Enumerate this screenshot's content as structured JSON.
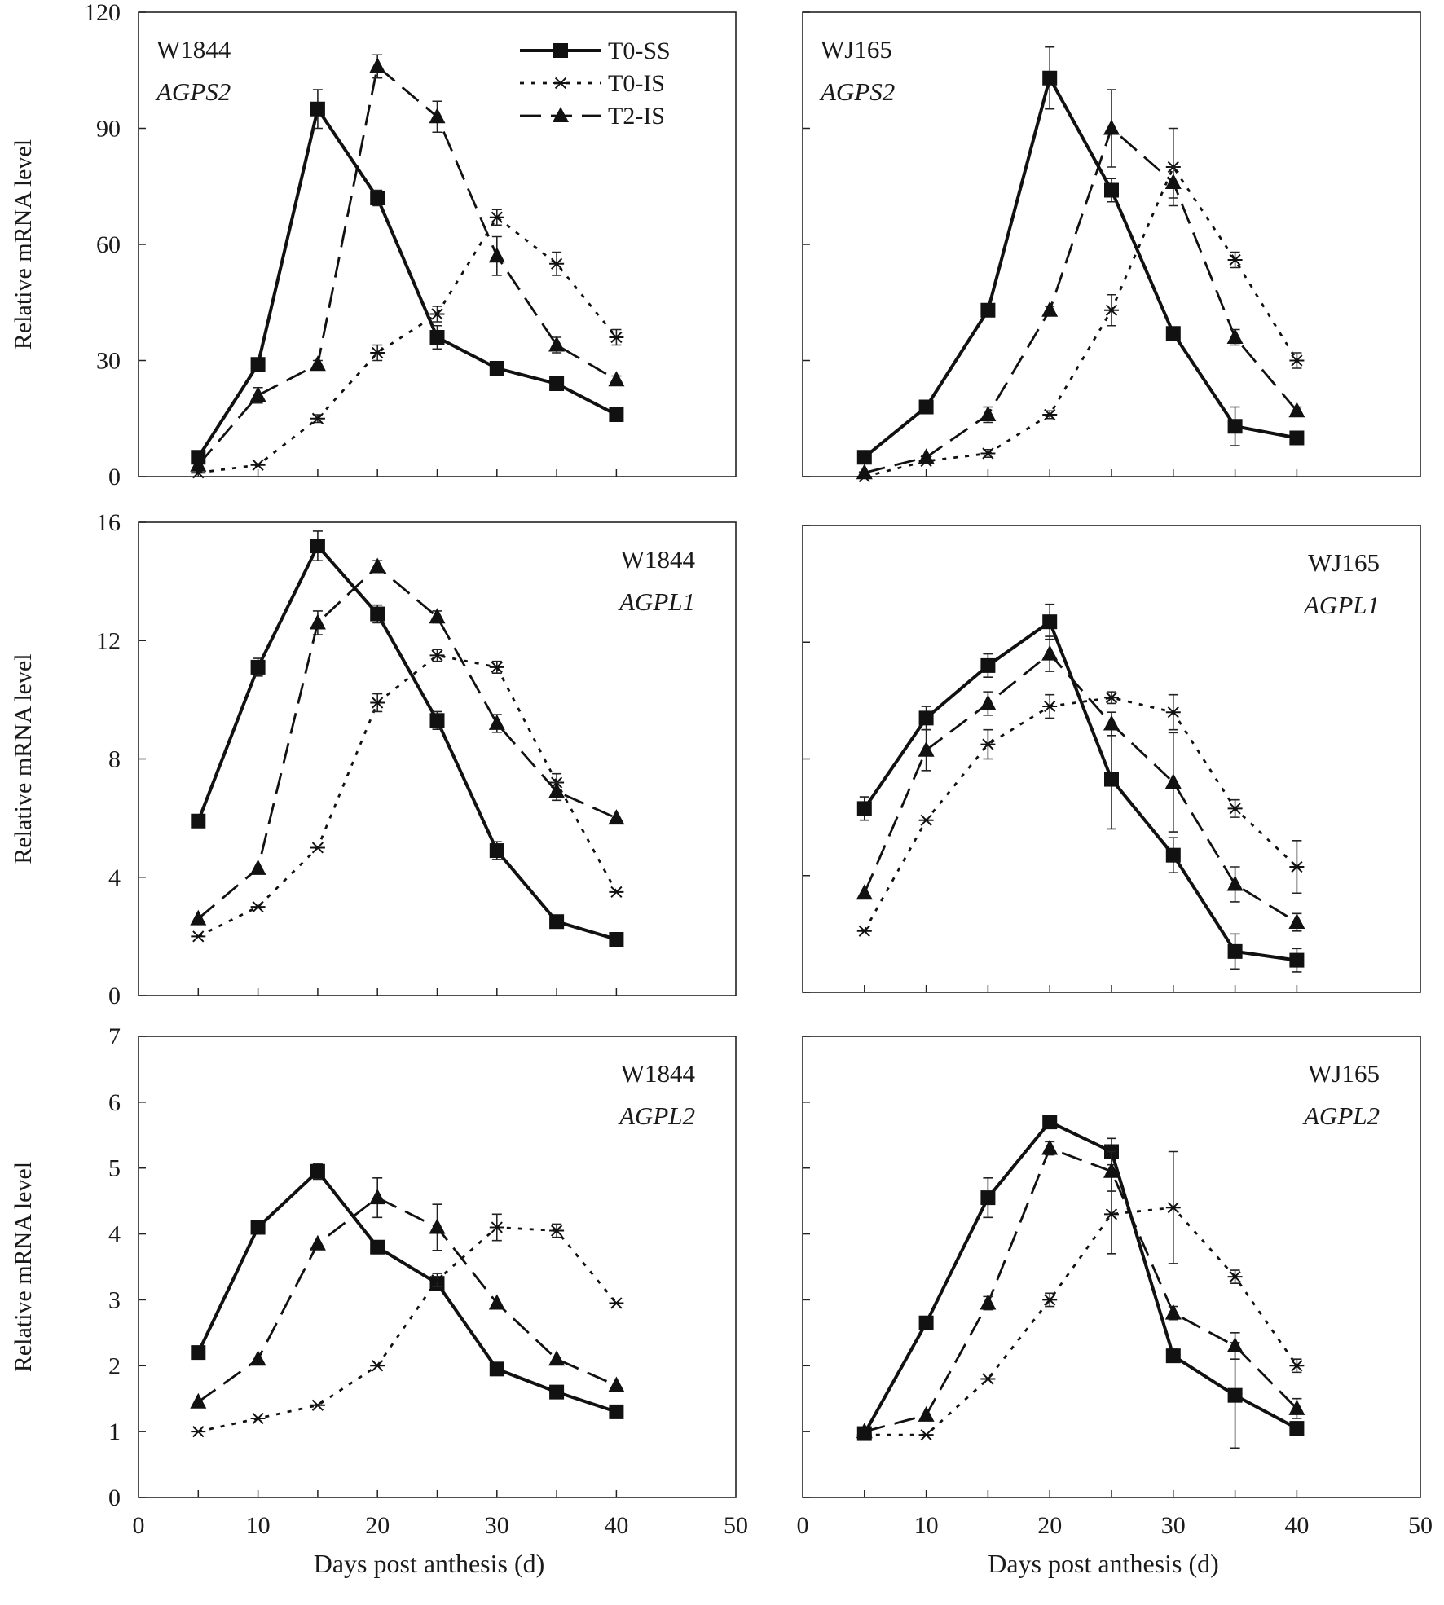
{
  "figure": {
    "series_styles": [
      {
        "name": "T0-SS",
        "marker": "square",
        "dash": "solid",
        "color": "#111111"
      },
      {
        "name": "T0-IS",
        "marker": "asterisk",
        "dash": "dotted",
        "color": "#111111"
      },
      {
        "name": "T2-IS",
        "marker": "triangle",
        "dash": "dashed",
        "color": "#111111"
      }
    ]
  },
  "chart_data": [
    {
      "id": "w1844-agps2",
      "type": "line",
      "cultivar": "W1844",
      "gene": "AGPS2",
      "ylabel": "Relative mRNA level",
      "xlabel": "",
      "ylim": [
        0,
        120
      ],
      "yticks": [
        0,
        30,
        60,
        90,
        120
      ],
      "xlim": [
        0,
        50
      ],
      "xticks": [],
      "legend": {
        "placement": "top-center",
        "entries": [
          "T0-SS",
          "T0-IS",
          "T2-IS"
        ]
      },
      "x": [
        5,
        10,
        15,
        20,
        25,
        30,
        35,
        40
      ],
      "series": [
        {
          "name": "T0-SS",
          "values": [
            5,
            29,
            95,
            72,
            36,
            28,
            24,
            16
          ],
          "errors": [
            0,
            0,
            5,
            2,
            3,
            1,
            1,
            1
          ]
        },
        {
          "name": "T0-IS",
          "values": [
            1,
            3,
            15,
            32,
            42,
            67,
            55,
            36
          ],
          "errors": [
            0,
            0,
            1,
            2,
            2,
            2,
            3,
            2
          ]
        },
        {
          "name": "T2-IS",
          "values": [
            3,
            21,
            29,
            106,
            93,
            57,
            34,
            25
          ],
          "errors": [
            0,
            2,
            1,
            3,
            4,
            5,
            2,
            1
          ]
        }
      ]
    },
    {
      "id": "wj165-agps2",
      "type": "line",
      "cultivar": "WJ165",
      "gene": "AGPS2",
      "ylabel": "",
      "xlabel": "",
      "ylim": [
        0,
        120
      ],
      "yticks": [],
      "xlim": [
        0,
        50
      ],
      "xticks": [],
      "x": [
        5,
        10,
        15,
        20,
        25,
        30,
        35,
        40
      ],
      "series": [
        {
          "name": "T0-SS",
          "values": [
            5,
            18,
            43,
            103,
            74,
            37,
            13,
            10
          ],
          "errors": [
            0,
            1,
            1,
            8,
            3,
            1,
            5,
            1
          ]
        },
        {
          "name": "T0-IS",
          "values": [
            0,
            4,
            6,
            16,
            43,
            80,
            56,
            30
          ],
          "errors": [
            0,
            0,
            1,
            1,
            4,
            10,
            2,
            2
          ]
        },
        {
          "name": "T2-IS",
          "values": [
            1,
            5,
            16,
            43,
            90,
            76,
            36,
            17
          ],
          "errors": [
            0,
            0,
            2,
            1,
            10,
            4,
            2,
            1
          ]
        }
      ]
    },
    {
      "id": "w1844-agpl1",
      "type": "line",
      "cultivar": "W1844",
      "gene": "AGPL1",
      "ylabel": "Relative mRNA level",
      "xlabel": "",
      "ylim": [
        0,
        16
      ],
      "yticks": [
        0,
        4,
        8,
        12,
        16
      ],
      "xlim": [
        0,
        50
      ],
      "xticks": [],
      "x": [
        5,
        10,
        15,
        20,
        25,
        30,
        35,
        40
      ],
      "series": [
        {
          "name": "T0-SS",
          "values": [
            5.9,
            11.1,
            15.2,
            12.9,
            9.3,
            4.9,
            2.5,
            1.9
          ],
          "errors": [
            0,
            0.3,
            0.5,
            0.3,
            0.3,
            0.3,
            0.2,
            0
          ]
        },
        {
          "name": "T0-IS",
          "values": [
            2.0,
            3.0,
            5.0,
            9.9,
            11.5,
            11.1,
            7.2,
            3.5
          ],
          "errors": [
            0,
            0,
            0,
            0.3,
            0.2,
            0.2,
            0.3,
            0
          ]
        },
        {
          "name": "T2-IS",
          "values": [
            2.6,
            4.3,
            12.6,
            14.5,
            12.8,
            9.2,
            6.9,
            6.0
          ],
          "errors": [
            0,
            0,
            0.4,
            0.2,
            0.2,
            0.3,
            0.3,
            0
          ]
        }
      ]
    },
    {
      "id": "wj165-agpl1",
      "type": "line",
      "cultivar": "WJ165",
      "gene": "AGPL1",
      "ylabel": "",
      "xlabel": "",
      "ylim": [
        0,
        16
      ],
      "yticks": [],
      "xlim": [
        0,
        50
      ],
      "xticks": [],
      "x": [
        5,
        10,
        15,
        20,
        25,
        30,
        35,
        40
      ],
      "series": [
        {
          "name": "T0-SS",
          "values": [
            6.3,
            9.4,
            11.2,
            12.7,
            7.3,
            4.7,
            1.4,
            1.1
          ],
          "errors": [
            0.4,
            0.4,
            0.4,
            0.6,
            1.7,
            0.6,
            0.6,
            0.4
          ]
        },
        {
          "name": "T0-IS",
          "values": [
            2.1,
            5.9,
            8.5,
            9.8,
            10.1,
            9.6,
            6.3,
            4.3
          ],
          "errors": [
            0,
            0,
            0.5,
            0.4,
            0.2,
            0.6,
            0.3,
            0.9
          ]
        },
        {
          "name": "T2-IS",
          "values": [
            3.4,
            8.3,
            9.9,
            11.6,
            9.2,
            7.2,
            3.7,
            2.4
          ],
          "errors": [
            0,
            0.7,
            0.4,
            0.6,
            0.4,
            1.7,
            0.6,
            0.3
          ]
        }
      ]
    },
    {
      "id": "w1844-agpl2",
      "type": "line",
      "cultivar": "W1844",
      "gene": "AGPL2",
      "ylabel": "Relative mRNA level",
      "xlabel": "Days post anthesis (d)",
      "ylim": [
        0,
        7
      ],
      "yticks": [
        0,
        1,
        2,
        3,
        4,
        5,
        6,
        7
      ],
      "xlim": [
        0,
        50
      ],
      "xticks": [
        0,
        10,
        20,
        30,
        40,
        50
      ],
      "x": [
        5,
        10,
        15,
        20,
        25,
        30,
        35,
        40
      ],
      "series": [
        {
          "name": "T0-SS",
          "values": [
            2.2,
            4.1,
            4.95,
            3.8,
            3.25,
            1.95,
            1.6,
            1.3
          ],
          "errors": [
            0,
            0,
            0.12,
            0,
            0.1,
            0,
            0,
            0
          ]
        },
        {
          "name": "T0-IS",
          "values": [
            1.0,
            1.2,
            1.4,
            2.0,
            3.3,
            4.1,
            4.05,
            2.95
          ],
          "errors": [
            0,
            0,
            0,
            0,
            0.1,
            0.2,
            0.1,
            0
          ]
        },
        {
          "name": "T2-IS",
          "values": [
            1.45,
            2.1,
            3.85,
            4.55,
            4.1,
            2.95,
            2.1,
            1.7
          ],
          "errors": [
            0,
            0,
            0,
            0.3,
            0.35,
            0,
            0,
            0
          ]
        }
      ]
    },
    {
      "id": "wj165-agpl2",
      "type": "line",
      "cultivar": "WJ165",
      "gene": "AGPL2",
      "ylabel": "",
      "xlabel": "Days post anthesis (d)",
      "ylim": [
        0,
        7
      ],
      "yticks": [],
      "xlim": [
        0,
        50
      ],
      "xticks": [
        0,
        10,
        20,
        30,
        40,
        50
      ],
      "x": [
        5,
        10,
        15,
        20,
        25,
        30,
        35,
        40
      ],
      "series": [
        {
          "name": "T0-SS",
          "values": [
            0.97,
            2.65,
            4.55,
            5.7,
            5.25,
            2.15,
            1.55,
            1.05
          ],
          "errors": [
            0,
            0,
            0.3,
            0.1,
            0.2,
            0.1,
            0.8,
            0
          ]
        },
        {
          "name": "T0-IS",
          "values": [
            0.95,
            0.95,
            1.8,
            3.0,
            4.3,
            4.4,
            3.35,
            2.0
          ],
          "errors": [
            0,
            0,
            0,
            0.1,
            0.6,
            0.85,
            0.1,
            0.1
          ]
        },
        {
          "name": "T2-IS",
          "values": [
            1.0,
            1.25,
            2.95,
            5.3,
            4.95,
            2.8,
            2.3,
            1.35
          ],
          "errors": [
            0,
            0,
            0.1,
            0.1,
            0.3,
            0.1,
            0.2,
            0.15
          ]
        }
      ]
    }
  ]
}
